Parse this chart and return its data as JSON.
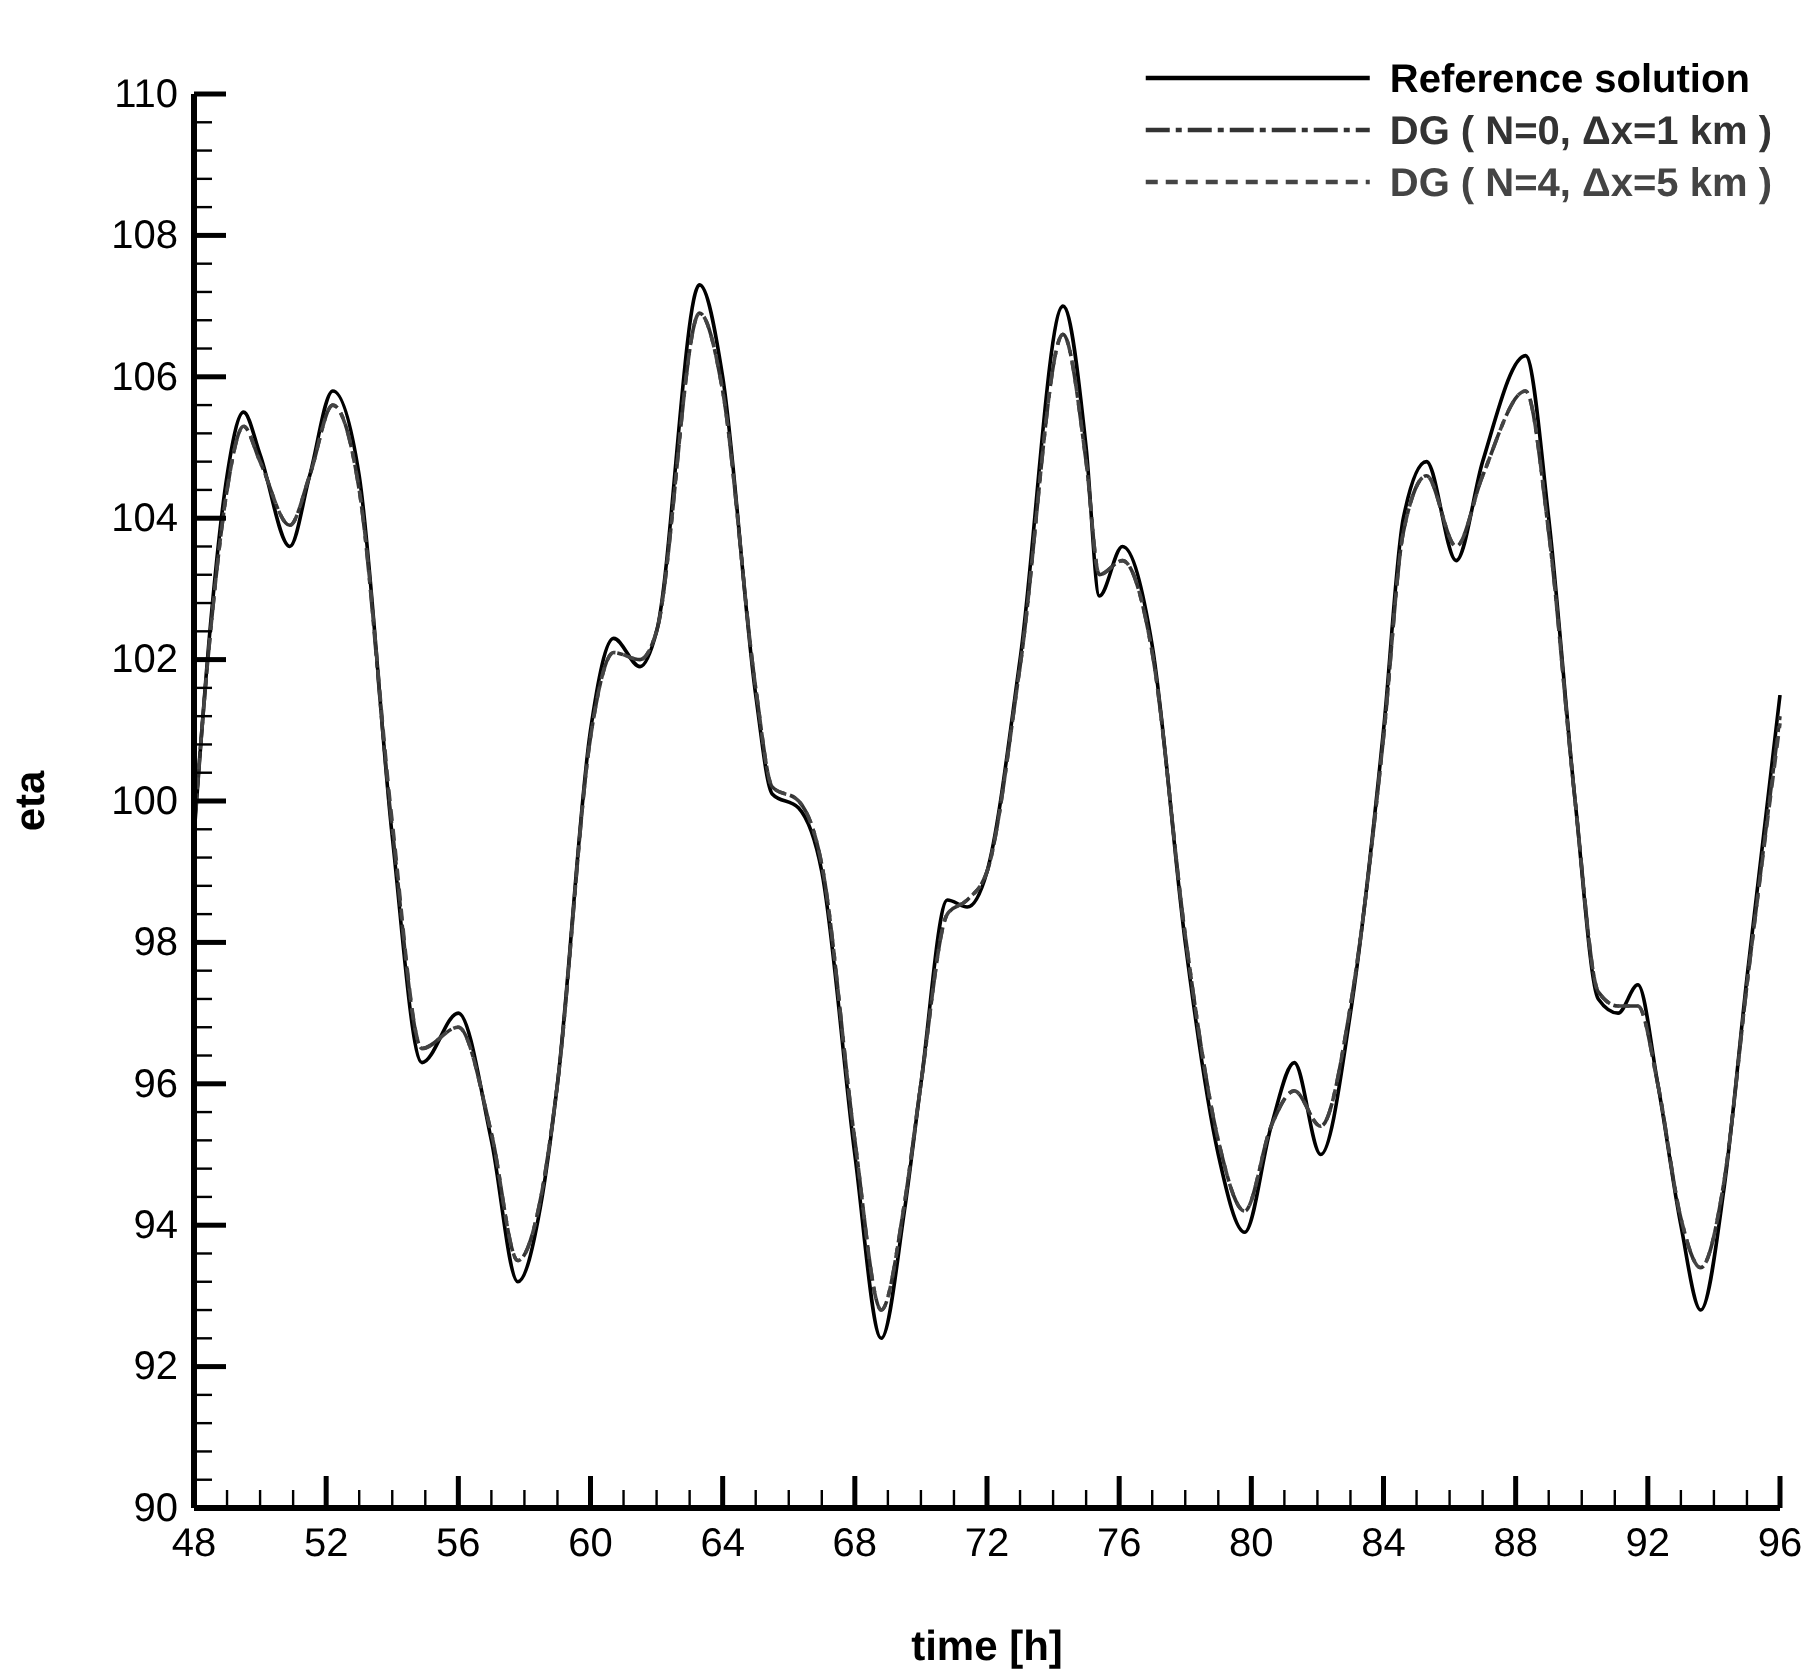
{
  "chart_data": {
    "type": "line",
    "xlabel": "time [h]",
    "ylabel": "eta",
    "xlim": [
      48,
      96
    ],
    "ylim": [
      90,
      110
    ],
    "xticks": [
      48,
      {
        "value": 49,
        "label": null
      },
      {
        "value": 50,
        "label": null
      },
      {
        "value": 51,
        "label": null
      },
      52,
      {
        "value": 53,
        "label": null
      },
      {
        "value": 54,
        "label": null
      },
      {
        "value": 55,
        "label": null
      },
      56,
      {
        "value": 57,
        "label": null
      },
      {
        "value": 58,
        "label": null
      },
      {
        "value": 59,
        "label": null
      },
      60,
      {
        "value": 61,
        "label": null
      },
      {
        "value": 62,
        "label": null
      },
      {
        "value": 63,
        "label": null
      },
      64,
      {
        "value": 65,
        "label": null
      },
      {
        "value": 66,
        "label": null
      },
      {
        "value": 67,
        "label": null
      },
      68,
      {
        "value": 69,
        "label": null
      },
      {
        "value": 70,
        "label": null
      },
      {
        "value": 71,
        "label": null
      },
      72,
      {
        "value": 73,
        "label": null
      },
      {
        "value": 74,
        "label": null
      },
      {
        "value": 75,
        "label": null
      },
      76,
      {
        "value": 77,
        "label": null
      },
      {
        "value": 78,
        "label": null
      },
      {
        "value": 79,
        "label": null
      },
      80,
      {
        "value": 81,
        "label": null
      },
      {
        "value": 82,
        "label": null
      },
      {
        "value": 83,
        "label": null
      },
      84,
      {
        "value": 85,
        "label": null
      },
      {
        "value": 86,
        "label": null
      },
      {
        "value": 87,
        "label": null
      },
      88,
      {
        "value": 89,
        "label": null
      },
      {
        "value": 90,
        "label": null
      },
      {
        "value": 91,
        "label": null
      },
      92,
      {
        "value": 93,
        "label": null
      },
      {
        "value": 94,
        "label": null
      },
      {
        "value": 95,
        "label": null
      },
      96
    ],
    "yticks": [
      90,
      {
        "value": 90.4,
        "label": null
      },
      {
        "value": 90.8,
        "label": null
      },
      {
        "value": 91.2,
        "label": null
      },
      {
        "value": 91.6,
        "label": null
      },
      92,
      {
        "value": 92.4,
        "label": null
      },
      {
        "value": 92.8,
        "label": null
      },
      {
        "value": 93.2,
        "label": null
      },
      {
        "value": 93.6,
        "label": null
      },
      94,
      {
        "value": 94.4,
        "label": null
      },
      {
        "value": 94.8,
        "label": null
      },
      {
        "value": 95.2,
        "label": null
      },
      {
        "value": 95.6,
        "label": null
      },
      96,
      {
        "value": 96.4,
        "label": null
      },
      {
        "value": 96.8,
        "label": null
      },
      {
        "value": 97.2,
        "label": null
      },
      {
        "value": 97.6,
        "label": null
      },
      98,
      {
        "value": 98.4,
        "label": null
      },
      {
        "value": 98.8,
        "label": null
      },
      {
        "value": 99.2,
        "label": null
      },
      {
        "value": 99.6,
        "label": null
      },
      100,
      {
        "value": 100.4,
        "label": null
      },
      {
        "value": 100.8,
        "label": null
      },
      {
        "value": 101.2,
        "label": null
      },
      {
        "value": 101.6,
        "label": null
      },
      102,
      {
        "value": 102.4,
        "label": null
      },
      {
        "value": 102.8,
        "label": null
      },
      {
        "value": 103.2,
        "label": null
      },
      {
        "value": 103.6,
        "label": null
      },
      104,
      {
        "value": 104.4,
        "label": null
      },
      {
        "value": 104.8,
        "label": null
      },
      {
        "value": 105.2,
        "label": null
      },
      {
        "value": 105.6,
        "label": null
      },
      106,
      {
        "value": 106.4,
        "label": null
      },
      {
        "value": 106.8,
        "label": null
      },
      {
        "value": 107.2,
        "label": null
      },
      {
        "value": 107.6,
        "label": null
      },
      108,
      {
        "value": 108.4,
        "label": null
      },
      {
        "value": 108.8,
        "label": null
      },
      {
        "value": 109.2,
        "label": null
      },
      {
        "value": 109.6,
        "label": null
      },
      110
    ],
    "x": [
      48,
      48.5,
      49,
      49.5,
      50,
      50.9,
      51.5,
      52.2,
      53,
      54,
      54.9,
      56,
      57,
      57.8,
      58.5,
      59,
      60,
      60.7,
      61.5,
      62,
      63.3,
      64,
      65,
      65.5,
      66.3,
      67,
      68,
      68.8,
      69.5,
      70,
      70.8,
      71.4,
      72,
      73,
      74.3,
      75,
      75.4,
      76.1,
      77,
      78,
      79,
      79.8,
      80.6,
      81.3,
      82.1,
      83,
      84,
      84.6,
      85.3,
      86.2,
      87,
      88.3,
      89,
      89.8,
      90.5,
      91.1,
      91.7,
      92.3,
      93,
      93.6,
      94.3,
      95,
      96
    ],
    "legend": "top right",
    "grid": false,
    "series": [
      {
        "name": "Reference solution",
        "color": "#000000",
        "line_style": "solid",
        "values": [
          99.5,
          102.5,
          104.6,
          105.5,
          104.9,
          103.6,
          104.6,
          105.8,
          104.6,
          99.5,
          96.3,
          97.0,
          95.2,
          93.2,
          94.3,
          96,
          101,
          102.3,
          101.9,
          102.4,
          107.3,
          106,
          101.5,
          100.1,
          99.9,
          99,
          95,
          92.4,
          94.2,
          96,
          98.6,
          98.5,
          99,
          102,
          107,
          105,
          102.9,
          103.6,
          102.2,
          98,
          95,
          93.9,
          95.4,
          96.3,
          95,
          97,
          101,
          104,
          104.8,
          103.4,
          104.8,
          106.3,
          104,
          100,
          97.2,
          97,
          97.4,
          96,
          94,
          92.8,
          94.5,
          97.5,
          101.5
        ]
      },
      {
        "name": "DG ( N=0, Δx=1 km )",
        "color": "#333333",
        "line_style": "dashdot",
        "values": [
          99.6,
          102.4,
          104.4,
          105.3,
          104.8,
          103.9,
          104.6,
          105.6,
          104.4,
          99.6,
          96.5,
          96.8,
          95.3,
          93.5,
          94.4,
          96,
          100.9,
          102.1,
          102.0,
          102.4,
          106.9,
          105.8,
          101.6,
          100.2,
          100.0,
          99.1,
          95.2,
          92.8,
          94.3,
          96,
          98.4,
          98.6,
          99,
          101.9,
          106.6,
          104.8,
          103.2,
          103.4,
          102.1,
          98.1,
          95.2,
          94.2,
          95.4,
          95.9,
          95.4,
          97.1,
          100.9,
          103.8,
          104.6,
          103.6,
          104.6,
          105.8,
          103.8,
          100,
          97.3,
          97.1,
          97.1,
          96,
          94.1,
          93.4,
          94.6,
          97.4,
          101.2
        ]
      },
      {
        "name": "DG ( N=4, Δx=5 km )",
        "color": "#444444",
        "line_style": "dashed",
        "values": [
          99.6,
          102.4,
          104.4,
          105.3,
          104.8,
          103.9,
          104.6,
          105.6,
          104.4,
          99.7,
          96.5,
          96.8,
          95.3,
          93.5,
          94.4,
          96,
          100.9,
          102.1,
          102.0,
          102.4,
          106.9,
          105.8,
          101.6,
          100.2,
          100.0,
          99.1,
          95.2,
          92.8,
          94.3,
          96,
          98.4,
          98.6,
          99,
          101.9,
          106.6,
          104.8,
          103.2,
          103.4,
          102.1,
          98.1,
          95.2,
          94.2,
          95.4,
          95.9,
          95.4,
          97.1,
          100.9,
          103.8,
          104.6,
          103.6,
          104.6,
          105.8,
          103.8,
          100,
          97.3,
          97.1,
          97.1,
          96,
          94.1,
          93.4,
          94.6,
          97.4,
          101.1
        ]
      }
    ]
  }
}
